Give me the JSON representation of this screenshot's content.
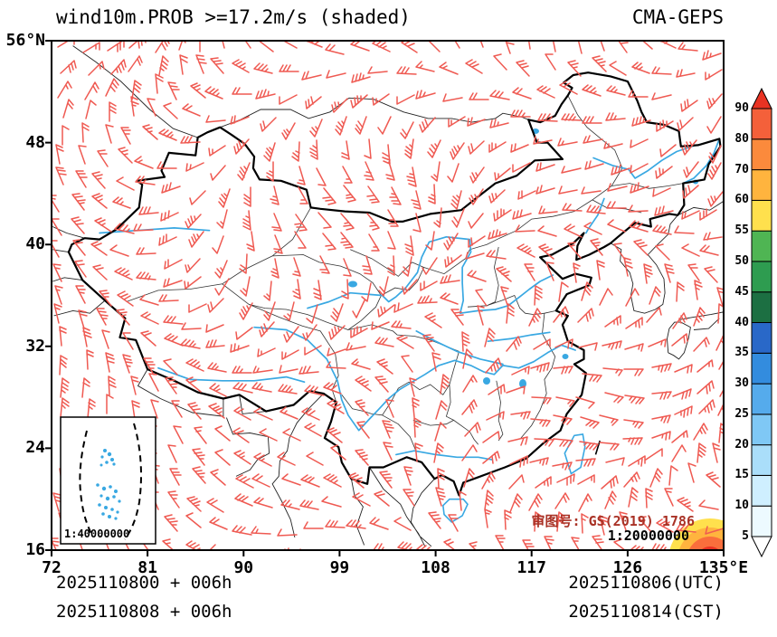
{
  "header": {
    "title": "wind10m.PROB >=17.2m/s (shaded)",
    "model": "CMA-GEPS"
  },
  "axes": {
    "y_tick_labels": [
      "56°N",
      "48",
      "40",
      "32",
      "24",
      "16"
    ],
    "y_tick_values": [
      56,
      48,
      40,
      32,
      24,
      16
    ],
    "x_tick_labels": [
      "72",
      "81",
      "90",
      "99",
      "108",
      "117",
      "126",
      "135°E"
    ],
    "x_tick_values": [
      72,
      81,
      90,
      99,
      108,
      117,
      126,
      135
    ],
    "lon_min": 72,
    "lon_max": 135,
    "lat_min": 16,
    "lat_max": 56
  },
  "colorbar": {
    "tick_labels": [
      "5",
      "10",
      "15",
      "20",
      "25",
      "30",
      "35",
      "40",
      "45",
      "50",
      "55",
      "60",
      "70",
      "80",
      "90"
    ],
    "segment_colors_bottom_to_top": [
      "#FFFFFF",
      "#EDFAFF",
      "#CFEFFF",
      "#AADEFA",
      "#7FC8F5",
      "#55ABEC",
      "#338CDE",
      "#2968C8",
      "#1C6F42",
      "#2E9C50",
      "#4FB553",
      "#FFE04D",
      "#FFB43E",
      "#FB8A3C",
      "#F4603A",
      "#E93323"
    ]
  },
  "inset": {
    "scale_label": "1:40000000"
  },
  "map_notes": {
    "approval_number": "审图号: GS(2019) 1786",
    "scale": "1:20000000"
  },
  "footer": {
    "init_line1": "2025110800 + 006h",
    "init_line2": "2025110808 + 006h",
    "valid_line1": "2025110806(UTC)",
    "valid_line2": "2025110814(CST)"
  },
  "style": {
    "barb_color": "#EF5A52",
    "river_color": "#39A8E2",
    "border_color": "#000000",
    "blob_colors": [
      "#FFE04D",
      "#FFB43E",
      "#F96E3C",
      "#E93323"
    ]
  }
}
